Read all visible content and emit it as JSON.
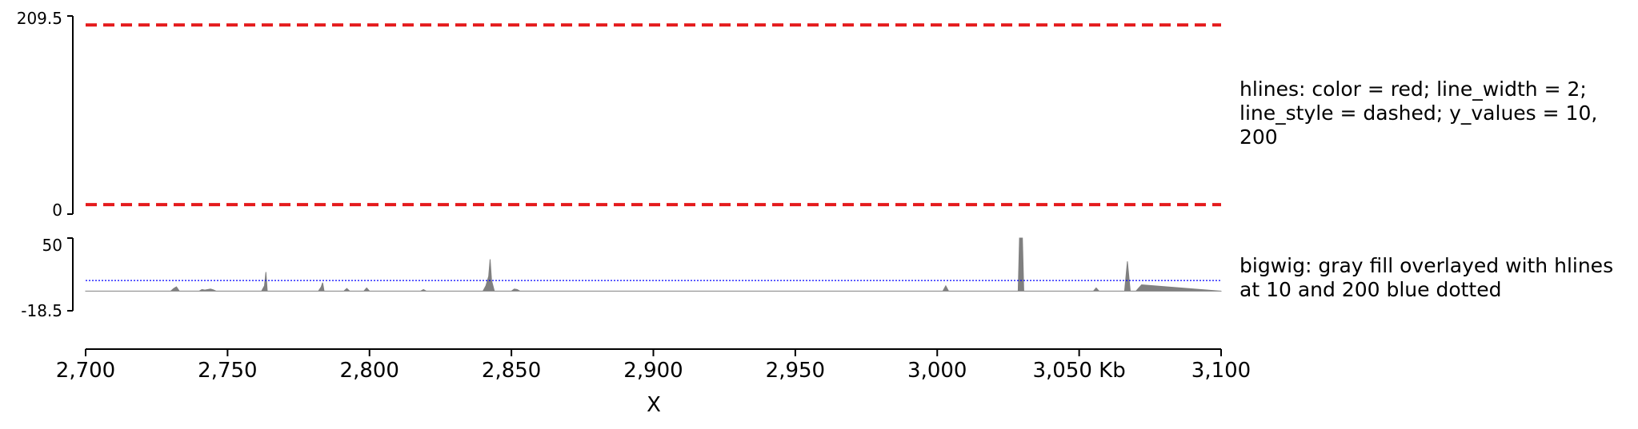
{
  "chart_data": [
    {
      "type": "line",
      "track": "hlines",
      "label": "hlines: color = red; line_width = 2; line_style = dashed; y_values = 10, 200",
      "ylim": [
        0,
        209.5
      ],
      "y_tick_labels": [
        "209.5",
        "0"
      ],
      "hlines": {
        "y_values": [
          10,
          200
        ],
        "color": "#e41a1c",
        "style": "dashed"
      },
      "grid": false
    },
    {
      "type": "area",
      "track": "bigwig",
      "label": "bigwig: gray fill overlayed with hlines at 10 and 200 blue dotted",
      "ylim": [
        -18.5,
        50
      ],
      "y_tick_labels": [
        "50",
        "-18.5"
      ],
      "fill_color": "#808080",
      "hlines": {
        "y_values": [
          10,
          200
        ],
        "color": "#0000ff",
        "style": "dotted"
      },
      "x": [
        2700,
        2730,
        2731,
        2732,
        2733,
        2740,
        2741,
        2742,
        2744,
        2745,
        2746,
        2762,
        2763,
        2763.5,
        2764,
        2782,
        2783,
        2783.5,
        2784,
        2791,
        2792,
        2793,
        2798,
        2799,
        2800,
        2818,
        2819,
        2820,
        2840,
        2841,
        2842,
        2842.5,
        2843,
        2844,
        2850,
        2851,
        2852,
        2853,
        3002,
        3003,
        3004,
        3028.5,
        3029,
        3030,
        3030.5,
        3055,
        3056,
        3057,
        3066,
        3067,
        3068,
        3070,
        3071,
        3072,
        3100
      ],
      "y": [
        0,
        0,
        2.5,
        4,
        0,
        0,
        1.5,
        1,
        2,
        1.2,
        0,
        0,
        5,
        18,
        0,
        0,
        4,
        8,
        0,
        0,
        2.5,
        0,
        0,
        3,
        0,
        0,
        1.5,
        0,
        0,
        5,
        14,
        30,
        10,
        0,
        0,
        2,
        1.5,
        0,
        0,
        5,
        0,
        0,
        50,
        50,
        0,
        0,
        3,
        0,
        0,
        28,
        0,
        0,
        3,
        6,
        0
      ]
    }
  ],
  "x_axis": {
    "ticks": [
      2700,
      2750,
      2800,
      2850,
      2900,
      2950,
      3000,
      3050,
      3100
    ],
    "tick_labels": [
      "2,700",
      "2,750",
      "2,800",
      "2,850",
      "2,900",
      "2,950",
      "3,000",
      "3,050 Kb",
      "3,100"
    ],
    "xlim": [
      2700,
      3100
    ],
    "label": "X"
  },
  "colors": {
    "hline_red": "#e41a1c",
    "hline_blue": "#0000ff",
    "fill_gray": "#808080"
  }
}
